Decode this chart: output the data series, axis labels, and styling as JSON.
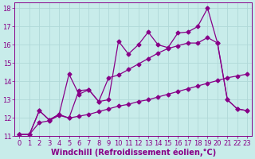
{
  "xlabel": "Windchill (Refroidissement éolien,°C)",
  "background_color": "#c8ecea",
  "grid_color": "#b0d8d8",
  "line_color": "#880088",
  "xlim": [
    -0.5,
    23.5
  ],
  "ylim": [
    11,
    18.3
  ],
  "xticks": [
    0,
    1,
    2,
    3,
    4,
    5,
    6,
    7,
    8,
    9,
    10,
    11,
    12,
    13,
    14,
    15,
    16,
    17,
    18,
    19,
    20,
    21,
    22,
    23
  ],
  "yticks": [
    11,
    12,
    13,
    14,
    15,
    16,
    17,
    18
  ],
  "line1_x": [
    0,
    1,
    2,
    3,
    4,
    5,
    6,
    7,
    8,
    9,
    10,
    11,
    12,
    13,
    14,
    15,
    16,
    17,
    18,
    19,
    20,
    21,
    22,
    23
  ],
  "line1_y": [
    11.1,
    11.1,
    12.4,
    11.9,
    12.2,
    14.4,
    13.3,
    13.55,
    12.9,
    13.0,
    16.2,
    15.5,
    16.0,
    16.7,
    16.0,
    15.85,
    16.65,
    16.7,
    17.0,
    18.0,
    16.1,
    13.0,
    12.5,
    12.4
  ],
  "line2_x": [
    0,
    1,
    2,
    3,
    4,
    5,
    6,
    7,
    8,
    9,
    10,
    11,
    12,
    13,
    14,
    15,
    16,
    17,
    18,
    19,
    20,
    21,
    22,
    23
  ],
  "line2_y": [
    11.1,
    11.1,
    11.75,
    11.85,
    12.15,
    12.0,
    12.1,
    12.2,
    12.35,
    12.5,
    12.65,
    12.75,
    12.9,
    13.0,
    13.15,
    13.3,
    13.45,
    13.6,
    13.75,
    13.9,
    14.05,
    14.2,
    14.3,
    14.4
  ],
  "line3_x": [
    0,
    1,
    2,
    3,
    4,
    5,
    6,
    7,
    8,
    9,
    10,
    11,
    12,
    13,
    14,
    15,
    16,
    17,
    18,
    19,
    20,
    21,
    22,
    23
  ],
  "line3_y": [
    11.1,
    11.1,
    12.4,
    11.9,
    12.2,
    12.0,
    13.5,
    13.55,
    12.9,
    14.2,
    14.35,
    14.65,
    14.95,
    15.25,
    15.55,
    15.8,
    15.95,
    16.1,
    16.1,
    16.4,
    16.1,
    13.0,
    12.5,
    12.4
  ],
  "markersize": 2.5,
  "linewidth": 0.9,
  "tick_fontsize": 6,
  "xlabel_fontsize": 7
}
